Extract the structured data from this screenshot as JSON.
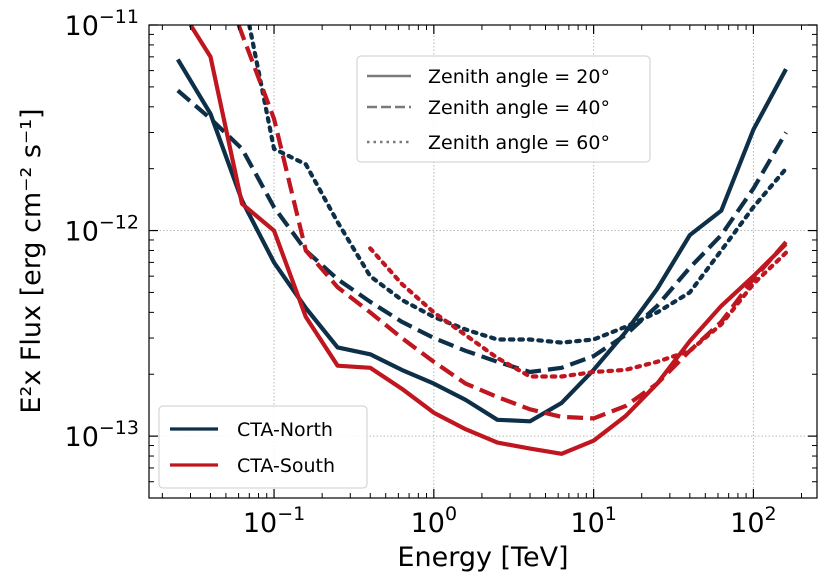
{
  "chart_data": {
    "type": "line",
    "xscale": "log",
    "yscale": "log",
    "xlabel": "Energy [TeV]",
    "ylabel": "E²x Flux [erg cm⁻² s⁻¹]",
    "xlim": [
      0.0165,
      250
    ],
    "ylim": [
      5e-14,
      1e-11
    ],
    "grid": true,
    "x_ticks": [
      {
        "value": 0.1,
        "mant": "10",
        "exp": "−1"
      },
      {
        "value": 1,
        "mant": "10",
        "exp": "0"
      },
      {
        "value": 10,
        "mant": "10",
        "exp": "1"
      },
      {
        "value": 100,
        "mant": "10",
        "exp": "2"
      }
    ],
    "y_ticks": [
      {
        "value": 1e-13,
        "mant": "10",
        "exp": "−13"
      },
      {
        "value": 1e-12,
        "mant": "10",
        "exp": "−12"
      },
      {
        "value": 1e-11,
        "mant": "10",
        "exp": "−11"
      }
    ],
    "style_legend": [
      {
        "label": "Zenith angle = 20°",
        "dash": "solid"
      },
      {
        "label": "Zenith angle = 40°",
        "dash": "dashed"
      },
      {
        "label": "Zenith angle = 60°",
        "dash": "dotted"
      }
    ],
    "site_legend": [
      {
        "label": "CTA-North",
        "color": "#0d2f48"
      },
      {
        "label": "CTA-South",
        "color": "#c0161f"
      }
    ],
    "series": [
      {
        "name": "CTA-North 20°",
        "site": "north",
        "dash": "solid",
        "color": "#0d2f48",
        "x": [
          0.025,
          0.04,
          0.063,
          0.1,
          0.158,
          0.25,
          0.4,
          0.63,
          1.0,
          1.58,
          2.5,
          4.0,
          6.3,
          10,
          15.8,
          25,
          40,
          63,
          100,
          160
        ],
        "y": [
          6.8e-12,
          3.7e-12,
          1.4e-12,
          7e-13,
          4.2e-13,
          2.7e-13,
          2.5e-13,
          2.1e-13,
          1.8e-13,
          1.5e-13,
          1.2e-13,
          1.18e-13,
          1.45e-13,
          2.1e-13,
          3.2e-13,
          5.2e-13,
          9.5e-13,
          1.25e-12,
          3.1e-12,
          6.1e-12
        ]
      },
      {
        "name": "CTA-North 40°",
        "site": "north",
        "dash": "dashed",
        "color": "#0d2f48",
        "x": [
          0.025,
          0.04,
          0.063,
          0.1,
          0.158,
          0.25,
          0.4,
          0.63,
          1.0,
          1.58,
          2.5,
          4.0,
          6.3,
          10,
          15.8,
          25,
          40,
          63,
          100,
          160
        ],
        "y": [
          4.8e-12,
          3.5e-12,
          2.5e-12,
          1.3e-12,
          8e-13,
          5.8e-13,
          4.5e-13,
          3.6e-13,
          3e-13,
          2.6e-13,
          2.3e-13,
          2.05e-13,
          2.15e-13,
          2.45e-13,
          3.1e-13,
          4.3e-13,
          6.6e-13,
          9.5e-13,
          1.6e-12,
          3e-12
        ]
      },
      {
        "name": "CTA-North 60°",
        "site": "north",
        "dash": "dotted",
        "color": "#0d2f48",
        "x": [
          0.07,
          0.1,
          0.158,
          0.25,
          0.4,
          0.63,
          1.0,
          1.58,
          2.5,
          4.0,
          6.3,
          10,
          15.8,
          25,
          40,
          63,
          100,
          160
        ],
        "y": [
          1e-11,
          2.5e-12,
          2.1e-12,
          1.1e-12,
          6e-13,
          4.6e-13,
          3.8e-13,
          3.3e-13,
          2.95e-13,
          2.95e-13,
          2.85e-13,
          2.95e-13,
          3.4e-13,
          4e-13,
          5e-13,
          8e-13,
          1.3e-12,
          2e-12
        ]
      },
      {
        "name": "CTA-South 20°",
        "site": "south",
        "dash": "solid",
        "color": "#c0161f",
        "x": [
          0.03,
          0.04,
          0.063,
          0.1,
          0.158,
          0.25,
          0.4,
          0.63,
          1.0,
          1.58,
          2.5,
          4.0,
          6.3,
          10,
          15.8,
          25,
          40,
          63,
          100,
          160
        ],
        "y": [
          1e-11,
          7e-12,
          1.35e-12,
          1e-12,
          3.8e-13,
          2.2e-13,
          2.15e-13,
          1.7e-13,
          1.3e-13,
          1.08e-13,
          9.3e-14,
          8.7e-14,
          8.2e-14,
          9.5e-14,
          1.25e-13,
          1.8e-13,
          2.9e-13,
          4.3e-13,
          6e-13,
          8.6e-13
        ]
      },
      {
        "name": "CTA-South 40°",
        "site": "south",
        "dash": "dashed",
        "color": "#c0161f",
        "x": [
          0.06,
          0.1,
          0.158,
          0.25,
          0.4,
          0.63,
          1.0,
          1.58,
          2.5,
          4.0,
          6.3,
          10,
          15.8,
          25,
          40,
          63,
          100,
          160
        ],
        "y": [
          1e-11,
          3.5e-12,
          8e-13,
          5.3e-13,
          4e-13,
          3e-13,
          2.3e-13,
          1.8e-13,
          1.55e-13,
          1.35e-13,
          1.24e-13,
          1.22e-13,
          1.4e-13,
          1.8e-13,
          2.6e-13,
          3.6e-13,
          5.8e-13,
          8.8e-13
        ]
      },
      {
        "name": "CTA-South 60°",
        "site": "south",
        "dash": "dotted",
        "color": "#c0161f",
        "x": [
          0.4,
          0.63,
          1.0,
          1.58,
          2.5,
          4.0,
          6.3,
          10,
          15.8,
          25,
          40,
          63,
          100,
          160
        ],
        "y": [
          8.2e-13,
          5.5e-13,
          4e-13,
          3.1e-13,
          2.4e-13,
          1.95e-13,
          1.95e-13,
          2.05e-13,
          2.1e-13,
          2.3e-13,
          2.6e-13,
          3.5e-13,
          5.5e-13,
          7.8e-13
        ]
      }
    ]
  }
}
